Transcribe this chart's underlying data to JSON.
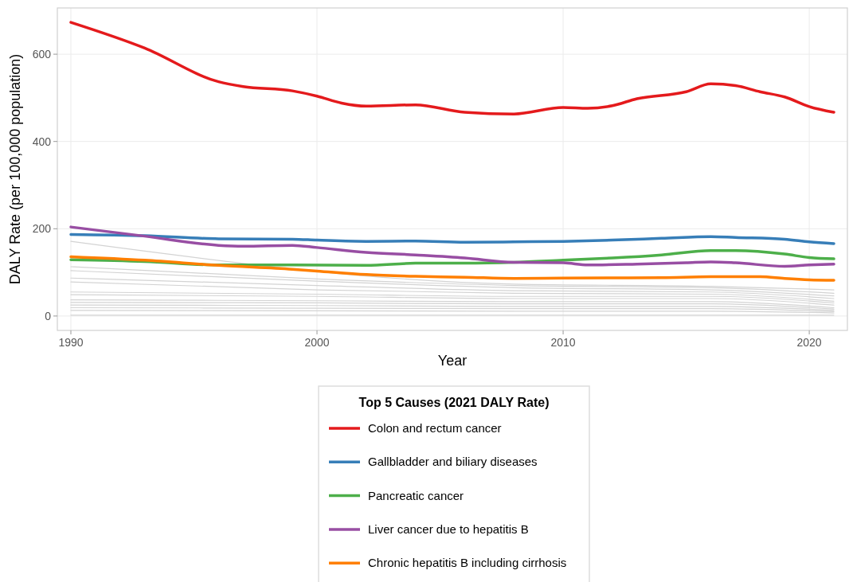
{
  "chart_data": {
    "type": "line",
    "xlabel": "Year",
    "ylabel": "DALY Rate (per 100,000 population)",
    "legend_title": "Top 5 Causes (2021 DALY Rate)",
    "legend": "bottom",
    "grid": true,
    "xlim": [
      1989.45,
      2021.55
    ],
    "xticks": [
      1990,
      2000,
      2010,
      2020
    ],
    "ylim": [
      -33,
      706
    ],
    "yticks": [
      0,
      200,
      400,
      600
    ],
    "series": [
      {
        "color": "#d3d3d3",
        "x": [
          1990,
          2008,
          2016,
          2021
        ],
        "values": [
          171,
          73,
          68,
          60
        ]
      },
      {
        "color": "#d3d3d3",
        "x": [
          1990,
          2000,
          2008,
          2016,
          2021
        ],
        "values": [
          113,
          85,
          70,
          65,
          52
        ]
      },
      {
        "color": "#d3d3d3",
        "x": [
          1990,
          2000,
          2008,
          2016,
          2021
        ],
        "values": [
          104,
          80,
          65,
          60,
          46
        ]
      },
      {
        "color": "#d3d3d3",
        "x": [
          1990,
          2000,
          2008,
          2016,
          2021
        ],
        "values": [
          87,
          70,
          58,
          55,
          40
        ]
      },
      {
        "color": "#d3d3d3",
        "x": [
          1990,
          2000,
          2008,
          2016,
          2021
        ],
        "values": [
          78,
          60,
          52,
          50,
          34
        ]
      },
      {
        "color": "#d3d3d3",
        "x": [
          1990,
          2000,
          2008,
          2016,
          2021
        ],
        "values": [
          55,
          50,
          45,
          45,
          30
        ]
      },
      {
        "color": "#d3d3d3",
        "x": [
          1990,
          2000,
          2008,
          2016,
          2021
        ],
        "values": [
          49,
          45,
          40,
          40,
          25
        ]
      },
      {
        "color": "#d3d3d3",
        "x": [
          1990,
          2000,
          2008,
          2016,
          2021
        ],
        "values": [
          37,
          35,
          33,
          33,
          19
        ]
      },
      {
        "color": "#d3d3d3",
        "x": [
          1990,
          2000,
          2008,
          2016,
          2021
        ],
        "values": [
          31,
          30,
          28,
          28,
          16
        ]
      },
      {
        "color": "#d3d3d3",
        "x": [
          1990,
          2000,
          2008,
          2016,
          2021
        ],
        "values": [
          25,
          24,
          22,
          22,
          13
        ]
      },
      {
        "color": "#d3d3d3",
        "x": [
          1990,
          2000,
          2008,
          2016,
          2021
        ],
        "values": [
          19,
          18,
          17,
          17,
          10
        ]
      },
      {
        "color": "#d3d3d3",
        "x": [
          1990,
          2000,
          2008,
          2016,
          2021
        ],
        "values": [
          13,
          12,
          11,
          11,
          7
        ]
      },
      {
        "color": "#d3d3d3",
        "x": [
          1990,
          2000,
          2008,
          2016,
          2021
        ],
        "values": [
          2,
          2,
          2,
          2,
          2
        ]
      },
      {
        "name": "Colon and rectum cancer",
        "color": "#e41a1c",
        "x": [
          1990,
          1993,
          1996,
          1997,
          1999,
          2000,
          2001,
          2002,
          2004,
          2006,
          2008,
          2010,
          2011,
          2012,
          2013,
          2015,
          2016,
          2017,
          2018,
          2019,
          2020,
          2021
        ],
        "values": [
          673,
          614,
          537,
          526,
          516,
          504,
          488,
          481,
          484,
          467,
          463,
          478,
          476,
          482,
          498,
          514,
          532,
          528,
          514,
          502,
          480,
          467
        ]
      },
      {
        "name": "Gallbladder and biliary diseases",
        "color": "#377eb8",
        "x": [
          1990,
          1993,
          1996,
          1999,
          2000,
          2002,
          2004,
          2006,
          2008,
          2010,
          2012,
          2014,
          2016,
          2017,
          2019,
          2020,
          2021
        ],
        "values": [
          187,
          184,
          177,
          176,
          174,
          171,
          172,
          169,
          170,
          171,
          174,
          178,
          182,
          180,
          176,
          170,
          166
        ]
      },
      {
        "name": "Pancreatic cancer",
        "color": "#4daf4a",
        "x": [
          1990,
          1993,
          1996,
          1999,
          2002,
          2004,
          2006,
          2008,
          2010,
          2012,
          2014,
          2016,
          2017,
          2019,
          2020,
          2021
        ],
        "values": [
          129,
          125,
          117,
          117,
          116,
          121,
          121,
          123,
          128,
          133,
          140,
          150,
          150,
          142,
          134,
          131
        ]
      },
      {
        "name": "Liver cancer due to hepatitis B",
        "color": "#984ea3",
        "x": [
          1990,
          1993,
          1996,
          1997,
          1999,
          2000,
          2002,
          2004,
          2006,
          2008,
          2010,
          2011,
          2013,
          2015,
          2016,
          2017,
          2019,
          2020,
          2021
        ],
        "values": [
          204,
          183,
          162,
          160,
          162,
          157,
          146,
          140,
          133,
          123,
          122,
          117,
          119,
          122,
          124,
          122,
          114,
          117,
          119
        ]
      },
      {
        "name": "Chronic hepatitis B including cirrhosis",
        "color": "#ff7f00",
        "x": [
          1990,
          1993,
          1996,
          1999,
          2000,
          2002,
          2004,
          2006,
          2008,
          2010,
          2014,
          2016,
          2018,
          2019,
          2020,
          2021
        ],
        "values": [
          136,
          128,
          116,
          107,
          103,
          95,
          91,
          89,
          86,
          87,
          88,
          90,
          90,
          86,
          83,
          82
        ]
      }
    ]
  }
}
